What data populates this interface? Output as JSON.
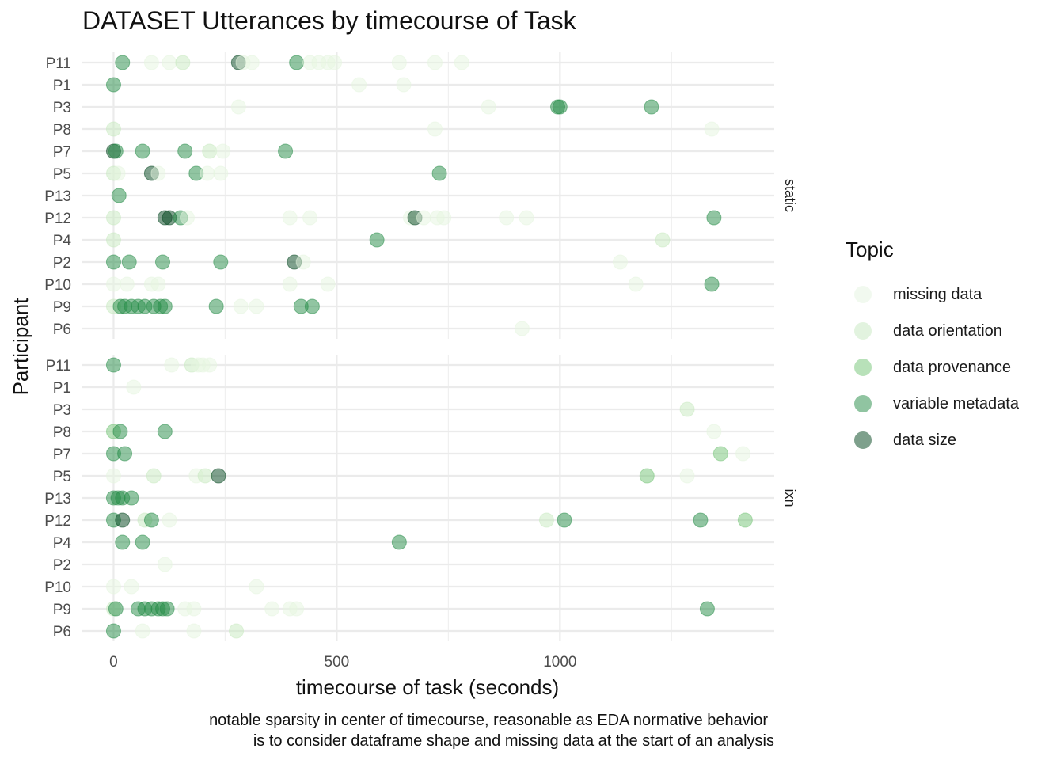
{
  "title": "DATASET Utterances by timecourse of Task",
  "caption": [
    "notable sparsity in center of timecourse, reasonable as EDA normative behavior",
    "is to consider dataframe shape and missing data at the start of an analysis"
  ],
  "legend": {
    "title": "Topic",
    "items": [
      {
        "label": "missing data",
        "color": "#e5f5e0"
      },
      {
        "label": "data orientation",
        "color": "#c7e9c0"
      },
      {
        "label": "data provenance",
        "color": "#74c476"
      },
      {
        "label": "variable metadata",
        "color": "#238b45"
      },
      {
        "label": "data size",
        "color": "#00441b"
      }
    ]
  },
  "chart_data": {
    "type": "scatter",
    "title": "DATASET Utterances by timecourse of Task",
    "xlabel": "timecourse of task (seconds)",
    "ylabel": "Participant",
    "xlim": [
      -70,
      1480
    ],
    "xticks": [
      0,
      500,
      1000
    ],
    "grid": true,
    "legend_position": "right",
    "participants": [
      "P11",
      "P1",
      "P3",
      "P8",
      "P7",
      "P5",
      "P13",
      "P12",
      "P4",
      "P2",
      "P10",
      "P9",
      "P6"
    ],
    "categories": [
      "missing data",
      "data orientation",
      "data provenance",
      "variable metadata",
      "data size"
    ],
    "panels": [
      {
        "name": "static",
        "points": [
          [
            "P11",
            20,
            "variable metadata"
          ],
          [
            "P11",
            85,
            "missing data"
          ],
          [
            "P11",
            125,
            "missing data"
          ],
          [
            "P11",
            155,
            "data orientation"
          ],
          [
            "P11",
            280,
            "data size"
          ],
          [
            "P11",
            290,
            "missing data"
          ],
          [
            "P11",
            310,
            "missing data"
          ],
          [
            "P11",
            410,
            "variable metadata"
          ],
          [
            "P11",
            440,
            "missing data"
          ],
          [
            "P11",
            460,
            "missing data"
          ],
          [
            "P11",
            480,
            "missing data"
          ],
          [
            "P11",
            495,
            "missing data"
          ],
          [
            "P11",
            640,
            "missing data"
          ],
          [
            "P11",
            720,
            "missing data"
          ],
          [
            "P11",
            780,
            "missing data"
          ],
          [
            "P1",
            0,
            "variable metadata"
          ],
          [
            "P1",
            550,
            "missing data"
          ],
          [
            "P1",
            650,
            "missing data"
          ],
          [
            "P3",
            280,
            "missing data"
          ],
          [
            "P3",
            840,
            "missing data"
          ],
          [
            "P3",
            995,
            "variable metadata"
          ],
          [
            "P3",
            1000,
            "variable metadata"
          ],
          [
            "P3",
            1205,
            "variable metadata"
          ],
          [
            "P8",
            0,
            "data orientation"
          ],
          [
            "P8",
            720,
            "missing data"
          ],
          [
            "P8",
            1340,
            "missing data"
          ],
          [
            "P7",
            0,
            "data size"
          ],
          [
            "P7",
            5,
            "variable metadata"
          ],
          [
            "P7",
            65,
            "variable metadata"
          ],
          [
            "P7",
            160,
            "variable metadata"
          ],
          [
            "P7",
            215,
            "data orientation"
          ],
          [
            "P7",
            245,
            "missing data"
          ],
          [
            "P7",
            385,
            "variable metadata"
          ],
          [
            "P5",
            0,
            "data orientation"
          ],
          [
            "P5",
            10,
            "missing data"
          ],
          [
            "P5",
            85,
            "data size"
          ],
          [
            "P5",
            100,
            "missing data"
          ],
          [
            "P5",
            185,
            "variable metadata"
          ],
          [
            "P5",
            210,
            "missing data"
          ],
          [
            "P5",
            240,
            "missing data"
          ],
          [
            "P5",
            730,
            "variable metadata"
          ],
          [
            "P13",
            12,
            "variable metadata"
          ],
          [
            "P12",
            0,
            "data orientation"
          ],
          [
            "P12",
            115,
            "data size"
          ],
          [
            "P12",
            125,
            "data size"
          ],
          [
            "P12",
            150,
            "variable metadata"
          ],
          [
            "P12",
            165,
            "missing data"
          ],
          [
            "P12",
            395,
            "missing data"
          ],
          [
            "P12",
            440,
            "missing data"
          ],
          [
            "P12",
            665,
            "missing data"
          ],
          [
            "P12",
            675,
            "data size"
          ],
          [
            "P12",
            695,
            "missing data"
          ],
          [
            "P12",
            725,
            "missing data"
          ],
          [
            "P12",
            740,
            "missing data"
          ],
          [
            "P12",
            880,
            "missing data"
          ],
          [
            "P12",
            925,
            "missing data"
          ],
          [
            "P12",
            1345,
            "variable metadata"
          ],
          [
            "P4",
            0,
            "data orientation"
          ],
          [
            "P4",
            590,
            "variable metadata"
          ],
          [
            "P4",
            1230,
            "data orientation"
          ],
          [
            "P2",
            0,
            "variable metadata"
          ],
          [
            "P2",
            35,
            "variable metadata"
          ],
          [
            "P2",
            110,
            "variable metadata"
          ],
          [
            "P2",
            240,
            "variable metadata"
          ],
          [
            "P2",
            405,
            "data size"
          ],
          [
            "P2",
            425,
            "missing data"
          ],
          [
            "P2",
            1135,
            "missing data"
          ],
          [
            "P10",
            0,
            "missing data"
          ],
          [
            "P10",
            30,
            "missing data"
          ],
          [
            "P10",
            85,
            "missing data"
          ],
          [
            "P10",
            100,
            "missing data"
          ],
          [
            "P10",
            395,
            "missing data"
          ],
          [
            "P10",
            480,
            "missing data"
          ],
          [
            "P10",
            1170,
            "missing data"
          ],
          [
            "P10",
            1340,
            "variable metadata"
          ],
          [
            "P9",
            0,
            "data orientation"
          ],
          [
            "P9",
            15,
            "variable metadata"
          ],
          [
            "P9",
            25,
            "variable metadata"
          ],
          [
            "P9",
            40,
            "variable metadata"
          ],
          [
            "P9",
            55,
            "variable metadata"
          ],
          [
            "P9",
            70,
            "variable metadata"
          ],
          [
            "P9",
            90,
            "variable metadata"
          ],
          [
            "P9",
            105,
            "variable metadata"
          ],
          [
            "P9",
            115,
            "variable metadata"
          ],
          [
            "P9",
            230,
            "variable metadata"
          ],
          [
            "P9",
            285,
            "missing data"
          ],
          [
            "P9",
            320,
            "missing data"
          ],
          [
            "P9",
            420,
            "variable metadata"
          ],
          [
            "P9",
            445,
            "variable metadata"
          ],
          [
            "P6",
            915,
            "missing data"
          ]
        ]
      },
      {
        "name": "ixn",
        "points": [
          [
            "P11",
            0,
            "variable metadata"
          ],
          [
            "P11",
            130,
            "missing data"
          ],
          [
            "P11",
            175,
            "data orientation"
          ],
          [
            "P11",
            190,
            "missing data"
          ],
          [
            "P11",
            200,
            "missing data"
          ],
          [
            "P11",
            215,
            "missing data"
          ],
          [
            "P1",
            45,
            "missing data"
          ],
          [
            "P3",
            1285,
            "data orientation"
          ],
          [
            "P8",
            0,
            "data provenance"
          ],
          [
            "P8",
            15,
            "variable metadata"
          ],
          [
            "P8",
            115,
            "variable metadata"
          ],
          [
            "P8",
            1345,
            "missing data"
          ],
          [
            "P7",
            0,
            "variable metadata"
          ],
          [
            "P7",
            25,
            "variable metadata"
          ],
          [
            "P7",
            1360,
            "data provenance"
          ],
          [
            "P7",
            1410,
            "missing data"
          ],
          [
            "P5",
            0,
            "missing data"
          ],
          [
            "P5",
            90,
            "data orientation"
          ],
          [
            "P5",
            185,
            "missing data"
          ],
          [
            "P5",
            205,
            "data orientation"
          ],
          [
            "P5",
            235,
            "data size"
          ],
          [
            "P5",
            1195,
            "data provenance"
          ],
          [
            "P5",
            1285,
            "missing data"
          ],
          [
            "P13",
            0,
            "variable metadata"
          ],
          [
            "P13",
            10,
            "variable metadata"
          ],
          [
            "P13",
            20,
            "variable metadata"
          ],
          [
            "P13",
            40,
            "variable metadata"
          ],
          [
            "P12",
            0,
            "variable metadata"
          ],
          [
            "P12",
            20,
            "data size"
          ],
          [
            "P12",
            70,
            "data orientation"
          ],
          [
            "P12",
            85,
            "variable metadata"
          ],
          [
            "P12",
            125,
            "missing data"
          ],
          [
            "P12",
            970,
            "data orientation"
          ],
          [
            "P12",
            1010,
            "variable metadata"
          ],
          [
            "P12",
            1315,
            "variable metadata"
          ],
          [
            "P12",
            1415,
            "data provenance"
          ],
          [
            "P4",
            20,
            "variable metadata"
          ],
          [
            "P4",
            65,
            "variable metadata"
          ],
          [
            "P4",
            640,
            "variable metadata"
          ],
          [
            "P2",
            115,
            "missing data"
          ],
          [
            "P10",
            0,
            "missing data"
          ],
          [
            "P10",
            40,
            "missing data"
          ],
          [
            "P10",
            320,
            "missing data"
          ],
          [
            "P9",
            0,
            "data orientation"
          ],
          [
            "P9",
            5,
            "variable metadata"
          ],
          [
            "P9",
            55,
            "variable metadata"
          ],
          [
            "P9",
            70,
            "variable metadata"
          ],
          [
            "P9",
            85,
            "variable metadata"
          ],
          [
            "P9",
            100,
            "variable metadata"
          ],
          [
            "P9",
            110,
            "variable metadata"
          ],
          [
            "P9",
            120,
            "variable metadata"
          ],
          [
            "P9",
            160,
            "missing data"
          ],
          [
            "P9",
            180,
            "missing data"
          ],
          [
            "P9",
            355,
            "missing data"
          ],
          [
            "P9",
            395,
            "missing data"
          ],
          [
            "P9",
            410,
            "missing data"
          ],
          [
            "P9",
            1330,
            "variable metadata"
          ],
          [
            "P6",
            0,
            "variable metadata"
          ],
          [
            "P6",
            65,
            "missing data"
          ],
          [
            "P6",
            180,
            "missing data"
          ],
          [
            "P6",
            275,
            "data orientation"
          ]
        ]
      }
    ]
  }
}
